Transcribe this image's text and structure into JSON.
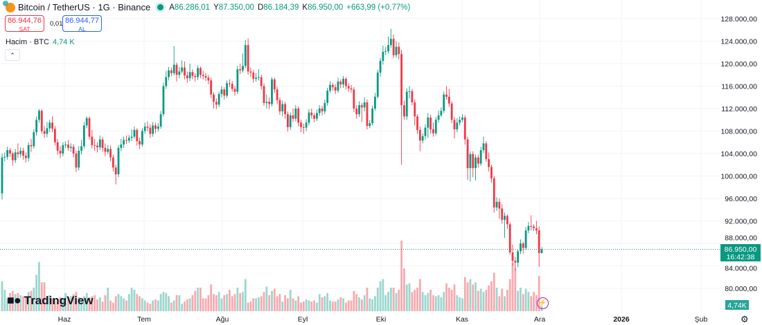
{
  "header": {
    "symbol_title": "Bitcoin / TetherUS · 1G · Binance",
    "ohlc": {
      "open_label": "A",
      "open": "86.286,01",
      "high_label": "Y",
      "high": "87.350,00",
      "low_label": "D",
      "low": "86.184,39",
      "close_label": "K",
      "close": "86.950,00",
      "change": "+663,99 (+0,77%)"
    },
    "sell_price": "86.944,76",
    "sell_label": "SAT",
    "spread": "0,01",
    "buy_price": "86.944,77",
    "buy_label": "AL"
  },
  "volume_legend": {
    "label": "Hacim · BTC",
    "value": "4,74 K"
  },
  "price_label": {
    "price": "86.950,00",
    "countdown": "16:42:38"
  },
  "volume_label": "4,74K",
  "logo": "TradingView",
  "icons": {
    "symbol": "bitcoin-icon",
    "collapse": "chevron-up-icon",
    "settings": "gear-icon",
    "alert": "lightning-icon"
  },
  "colors": {
    "up": "#089981",
    "down": "#f23645",
    "up_volume": "#9bd6cd",
    "down_volume": "#f7a9af",
    "price_line": "#089981"
  },
  "chart_data": {
    "type": "candlestick",
    "ylim": [
      78000,
      130000
    ],
    "y_ticks": [
      128000,
      124000,
      120000,
      116000,
      112000,
      108000,
      104000,
      100000,
      96000,
      92000,
      88000,
      84000,
      80000
    ],
    "y_tick_labels": [
      "128.000,00",
      "124.000,00",
      "120.000,00",
      "116.000,00",
      "112.000,00",
      "108.000,00",
      "104.000,00",
      "100.000,00",
      "96.000,00",
      "92.000,00",
      "88.000,00",
      "84.000,00",
      "80.000,00"
    ],
    "x_tick_labels": [
      "Haz",
      "Tem",
      "Ağu",
      "Eyl",
      "Eki",
      "Kas",
      "Ara",
      "2026",
      "Şub"
    ],
    "grid": true,
    "first_open": 96900,
    "close": [
      103300,
      103400,
      104600,
      104000,
      102800,
      104200,
      103900,
      104500,
      103600,
      103200,
      105500,
      105300,
      107800,
      110000,
      111600,
      108000,
      107500,
      108500,
      109500,
      108400,
      106000,
      104500,
      104000,
      105500,
      105600,
      105000,
      105200,
      104000,
      101500,
      104500,
      105300,
      109000,
      110300,
      107000,
      105500,
      105400,
      105100,
      106500,
      105000,
      104300,
      104800,
      103300,
      101500,
      100300,
      105000,
      105600,
      106400,
      106300,
      106800,
      107000,
      108200,
      106200,
      105600,
      108000,
      108800,
      108600,
      107500,
      109000,
      108400,
      108800,
      111000,
      116000,
      117600,
      118800,
      118300,
      119800,
      118000,
      118600,
      119300,
      117900,
      117400,
      118500,
      117800,
      117600,
      119200,
      118000,
      117800,
      117500,
      117000,
      114500,
      113200,
      112700,
      114600,
      115400,
      114300,
      116500,
      116400,
      115500,
      115000,
      119000,
      118800,
      119600,
      123300,
      118600,
      118400,
      117300,
      117500,
      117600,
      116000,
      113000,
      113200,
      112800,
      117200,
      115400,
      113500,
      111500,
      112800,
      111000,
      108700,
      110800,
      110200,
      112000,
      109500,
      108700,
      108600,
      109500,
      111300,
      110800,
      110200,
      111200,
      112000,
      111500,
      113000,
      115200,
      116200,
      115800,
      115200,
      116800,
      116300,
      117300,
      116000,
      115600,
      115400,
      112000,
      111000,
      112600,
      112200,
      113100,
      108900,
      109400,
      112000,
      114100,
      118400,
      120500,
      122100,
      122200,
      123300,
      124400,
      121500,
      123000,
      121700,
      112600,
      110600,
      115000,
      115100,
      113100,
      110600,
      108200,
      106300,
      107100,
      108600,
      110400,
      108300,
      107600,
      110000,
      110800,
      111600,
      114500,
      114100,
      112900,
      110000,
      108300,
      109500,
      110000,
      110400,
      106500,
      101400,
      103900,
      101400,
      103300,
      102200,
      104600,
      105800,
      103000,
      101600,
      99600,
      94400,
      95400,
      94200,
      92200,
      92900,
      91400,
      86400,
      84900,
      84600,
      86600,
      88000,
      87200,
      90300,
      91100,
      91000,
      90700,
      90300,
      86286,
      86950
    ],
    "high": [
      104000,
      104200,
      105200,
      105000,
      104400,
      104800,
      105800,
      105100,
      105000,
      104200,
      106000,
      106600,
      108300,
      110600,
      111900,
      111900,
      108900,
      109600,
      110000,
      110600,
      108900,
      106600,
      105300,
      106000,
      106200,
      106400,
      105800,
      105700,
      104500,
      105300,
      106400,
      109600,
      110600,
      110600,
      108200,
      106600,
      106000,
      107200,
      107000,
      105800,
      105500,
      105400,
      103800,
      102000,
      105500,
      106600,
      107000,
      107200,
      107300,
      108300,
      108800,
      108500,
      106800,
      108500,
      109500,
      109700,
      109200,
      109600,
      109500,
      109400,
      111600,
      116600,
      118700,
      119400,
      119300,
      123100,
      120200,
      119400,
      120600,
      120400,
      118600,
      120000,
      119000,
      118300,
      119700,
      119500,
      118700,
      118300,
      118000,
      117500,
      114900,
      113800,
      115000,
      116000,
      115800,
      117000,
      117200,
      116900,
      116000,
      119600,
      120000,
      121800,
      124200,
      124500,
      119300,
      118900,
      118300,
      119000,
      118000,
      116500,
      114500,
      114000,
      117600,
      117500,
      115900,
      114000,
      113400,
      113200,
      111500,
      111300,
      112000,
      112600,
      112400,
      110000,
      109300,
      110100,
      111900,
      112000,
      111200,
      111800,
      112600,
      112500,
      113600,
      115700,
      116900,
      116600,
      116300,
      117500,
      117200,
      117800,
      117600,
      116500,
      116200,
      115800,
      112600,
      113300,
      113000,
      114000,
      113600,
      110000,
      112500,
      114800,
      118900,
      121000,
      123200,
      123000,
      124800,
      126200,
      125200,
      124000,
      123800,
      122500,
      113400,
      115600,
      116000,
      115500,
      113600,
      111000,
      108800,
      107600,
      109200,
      111200,
      110900,
      109500,
      110500,
      111600,
      112200,
      115000,
      116000,
      115500,
      113300,
      110500,
      110300,
      110600,
      111000,
      110800,
      107000,
      104400,
      104400,
      103800,
      103800,
      105200,
      107000,
      106200,
      104200,
      102000,
      100000,
      96200,
      96000,
      95000,
      93500,
      93200,
      91800,
      87800,
      85600,
      87000,
      88700,
      88300,
      90900,
      91800,
      93000,
      91400,
      92000,
      91000,
      87350
    ],
    "low": [
      95800,
      102600,
      102900,
      103400,
      101900,
      102300,
      103200,
      103300,
      102900,
      102400,
      102600,
      104300,
      104900,
      107200,
      109500,
      107500,
      106800,
      106900,
      107800,
      107800,
      105400,
      103800,
      103200,
      103500,
      105000,
      104500,
      104300,
      103300,
      100700,
      101000,
      103800,
      104900,
      108500,
      106500,
      104900,
      104500,
      104200,
      104600,
      104300,
      103500,
      103900,
      102600,
      100800,
      98500,
      99800,
      104400,
      105000,
      105700,
      105900,
      106200,
      106600,
      105400,
      104800,
      105200,
      107500,
      108000,
      106800,
      107000,
      107600,
      107900,
      108400,
      110600,
      115500,
      117000,
      117800,
      117900,
      116800,
      117400,
      118200,
      117200,
      116600,
      116900,
      117200,
      116800,
      117100,
      117400,
      117200,
      116900,
      116300,
      113900,
      112000,
      111900,
      112300,
      114000,
      113600,
      113900,
      115800,
      115000,
      114300,
      114600,
      118100,
      118400,
      119200,
      118000,
      117600,
      116600,
      116800,
      117000,
      115400,
      112500,
      112000,
      111900,
      112400,
      114800,
      112800,
      110900,
      110600,
      110200,
      107900,
      108200,
      109600,
      109700,
      108800,
      107800,
      107500,
      108000,
      109000,
      110200,
      109600,
      109800,
      110700,
      110800,
      111000,
      112500,
      114800,
      115200,
      114600,
      114800,
      115600,
      115700,
      115400,
      115000,
      114800,
      111400,
      110200,
      110500,
      109600,
      111500,
      108300,
      108500,
      109000,
      111600,
      113800,
      117700,
      119800,
      121500,
      121800,
      122800,
      121000,
      121100,
      120800,
      102000,
      110000,
      110000,
      113800,
      112600,
      109000,
      107500,
      104400,
      105800,
      106500,
      106800,
      107500,
      107000,
      107200,
      109500,
      110500,
      111200,
      113600,
      112300,
      109400,
      106700,
      107800,
      109000,
      109600,
      105600,
      99300,
      99000,
      99800,
      99200,
      101500,
      101800,
      104100,
      102500,
      100800,
      98800,
      93500,
      93800,
      92400,
      91500,
      89000,
      90600,
      86000,
      84000,
      83200,
      83800,
      86100,
      86200,
      86800,
      89800,
      90300,
      90200,
      89600,
      83800,
      86184
    ],
    "volume": [
      28000,
      20000,
      12000,
      17000,
      19000,
      16000,
      17000,
      15000,
      14000,
      13000,
      18000,
      19000,
      22000,
      34000,
      46000,
      27000,
      27000,
      14000,
      15000,
      12000,
      10000,
      9000,
      13000,
      12000,
      17000,
      11000,
      14000,
      16000,
      18000,
      13000,
      12000,
      14000,
      17000,
      13000,
      14000,
      15000,
      11000,
      13000,
      9000,
      15000,
      22000,
      10000,
      8000,
      14000,
      16000,
      14000,
      12000,
      10000,
      16000,
      22000,
      20000,
      16000,
      14000,
      12000,
      10000,
      8000,
      7000,
      10000,
      11000,
      10000,
      16000,
      18000,
      17000,
      14000,
      8000,
      10000,
      15000,
      15000,
      7000,
      9000,
      11000,
      12000,
      15000,
      19000,
      22000,
      22000,
      12000,
      12000,
      15000,
      25000,
      16000,
      15000,
      18000,
      12000,
      15000,
      16000,
      20000,
      14000,
      16000,
      22000,
      17000,
      18000,
      30000,
      8000,
      9000,
      12000,
      12000,
      13000,
      14000,
      18000,
      23000,
      15000,
      19000,
      21000,
      14000,
      16000,
      9000,
      15000,
      12000,
      20000,
      12000,
      10000,
      14000,
      8000,
      9000,
      11000,
      10000,
      9000,
      10000,
      8000,
      16000,
      13000,
      14000,
      17000,
      10000,
      9000,
      9000,
      11000,
      13000,
      12000,
      8000,
      10000,
      10000,
      19000,
      16000,
      13000,
      11000,
      15000,
      22000,
      12000,
      11000,
      14000,
      22000,
      28000,
      30000,
      15000,
      18000,
      22000,
      22000,
      17000,
      20000,
      66000,
      40000,
      25000,
      26000,
      18000,
      20000,
      22000,
      30000,
      18000,
      15000,
      17000,
      20000,
      15000,
      14000,
      15000,
      13000,
      18000,
      26000,
      22000,
      20000,
      25000,
      15000,
      13000,
      12000,
      32000,
      27000,
      30000,
      25000,
      27000,
      19000,
      21000,
      18000,
      20000,
      24000,
      28000,
      36000,
      22000,
      14000,
      21000,
      14000,
      20000,
      30000,
      45000,
      40000,
      19000,
      22000,
      16000,
      21000,
      18000,
      14000,
      18000,
      15000,
      33000,
      4740
    ],
    "last_price": 86950
  }
}
